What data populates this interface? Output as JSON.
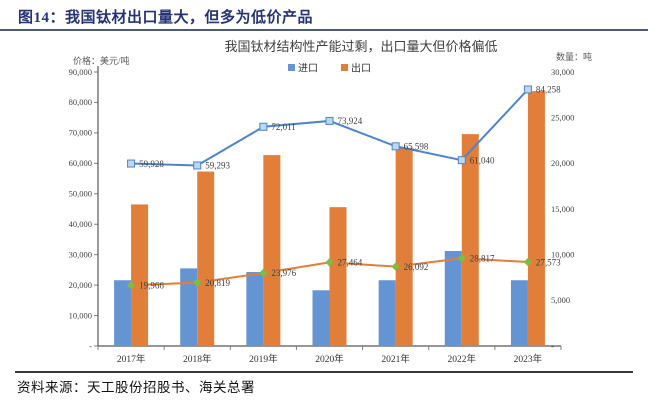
{
  "page": {
    "figure_label_title": "图14：我国钛材出口量大，但多为低价产品",
    "source": "资料来源：天工股份招股书、海关总署"
  },
  "chart_data": {
    "type": "combo bar+line, dual axis",
    "title": "我国钛材结构性产能过剩，出口量大但价格偏低",
    "categories": [
      "2017年",
      "2018年",
      "2019年",
      "2020年",
      "2021年",
      "2022年",
      "2023年"
    ],
    "legend": [
      {
        "label": "进口",
        "color": "#6494D2"
      },
      {
        "label": "出口",
        "color": "#E07E3A"
      }
    ],
    "legend_position": "top-center",
    "grid": false,
    "left_axis": {
      "title": "价格：美元/吨",
      "min": 0,
      "max": 90000,
      "step": 10000,
      "tick_labels": [
        "90,000",
        "80,000",
        "70,000",
        "60,000",
        "50,000",
        "40,000",
        "30,000",
        "20,000",
        "10,000",
        "-"
      ]
    },
    "right_axis": {
      "title": "数量：吨",
      "min": 0,
      "max": 30000,
      "step": 5000,
      "tick_labels": [
        "30,000",
        "25,000",
        "20,000",
        "15,000",
        "10,000",
        "5,000",
        "-"
      ]
    },
    "series": [
      {
        "name": "进口数量(吨)",
        "type": "bar",
        "axis": "right",
        "color": "#6494D2",
        "values": [
          7200,
          8500,
          8100,
          6100,
          7200,
          10400,
          7200
        ]
      },
      {
        "name": "出口数量(吨)",
        "type": "bar",
        "axis": "right",
        "color": "#E07E3A",
        "values": [
          15500,
          19100,
          20900,
          15200,
          21700,
          23200,
          27900
        ]
      },
      {
        "name": "进口价格(美元/吨)",
        "type": "line",
        "axis": "left",
        "color": "#4C84D0",
        "marker": "square",
        "marker_fill": "#BDD7EE",
        "values": [
          59928,
          59293,
          72011,
          73924,
          65598,
          61040,
          84258
        ],
        "labels": [
          "59,928",
          "59,293",
          "72,011",
          "73,924",
          "65,598",
          "61,040",
          "84,258"
        ]
      },
      {
        "name": "出口价格(美元/吨)",
        "type": "line",
        "axis": "left",
        "color": "#E07E3A",
        "marker": "diamond",
        "marker_fill": "#7FBC42",
        "values": [
          19966,
          20819,
          23976,
          27464,
          26092,
          28817,
          27573
        ],
        "labels": [
          "19,966",
          "20,819",
          "23,976",
          "27,464",
          "26,092",
          "28,817",
          "27,573"
        ]
      }
    ]
  }
}
